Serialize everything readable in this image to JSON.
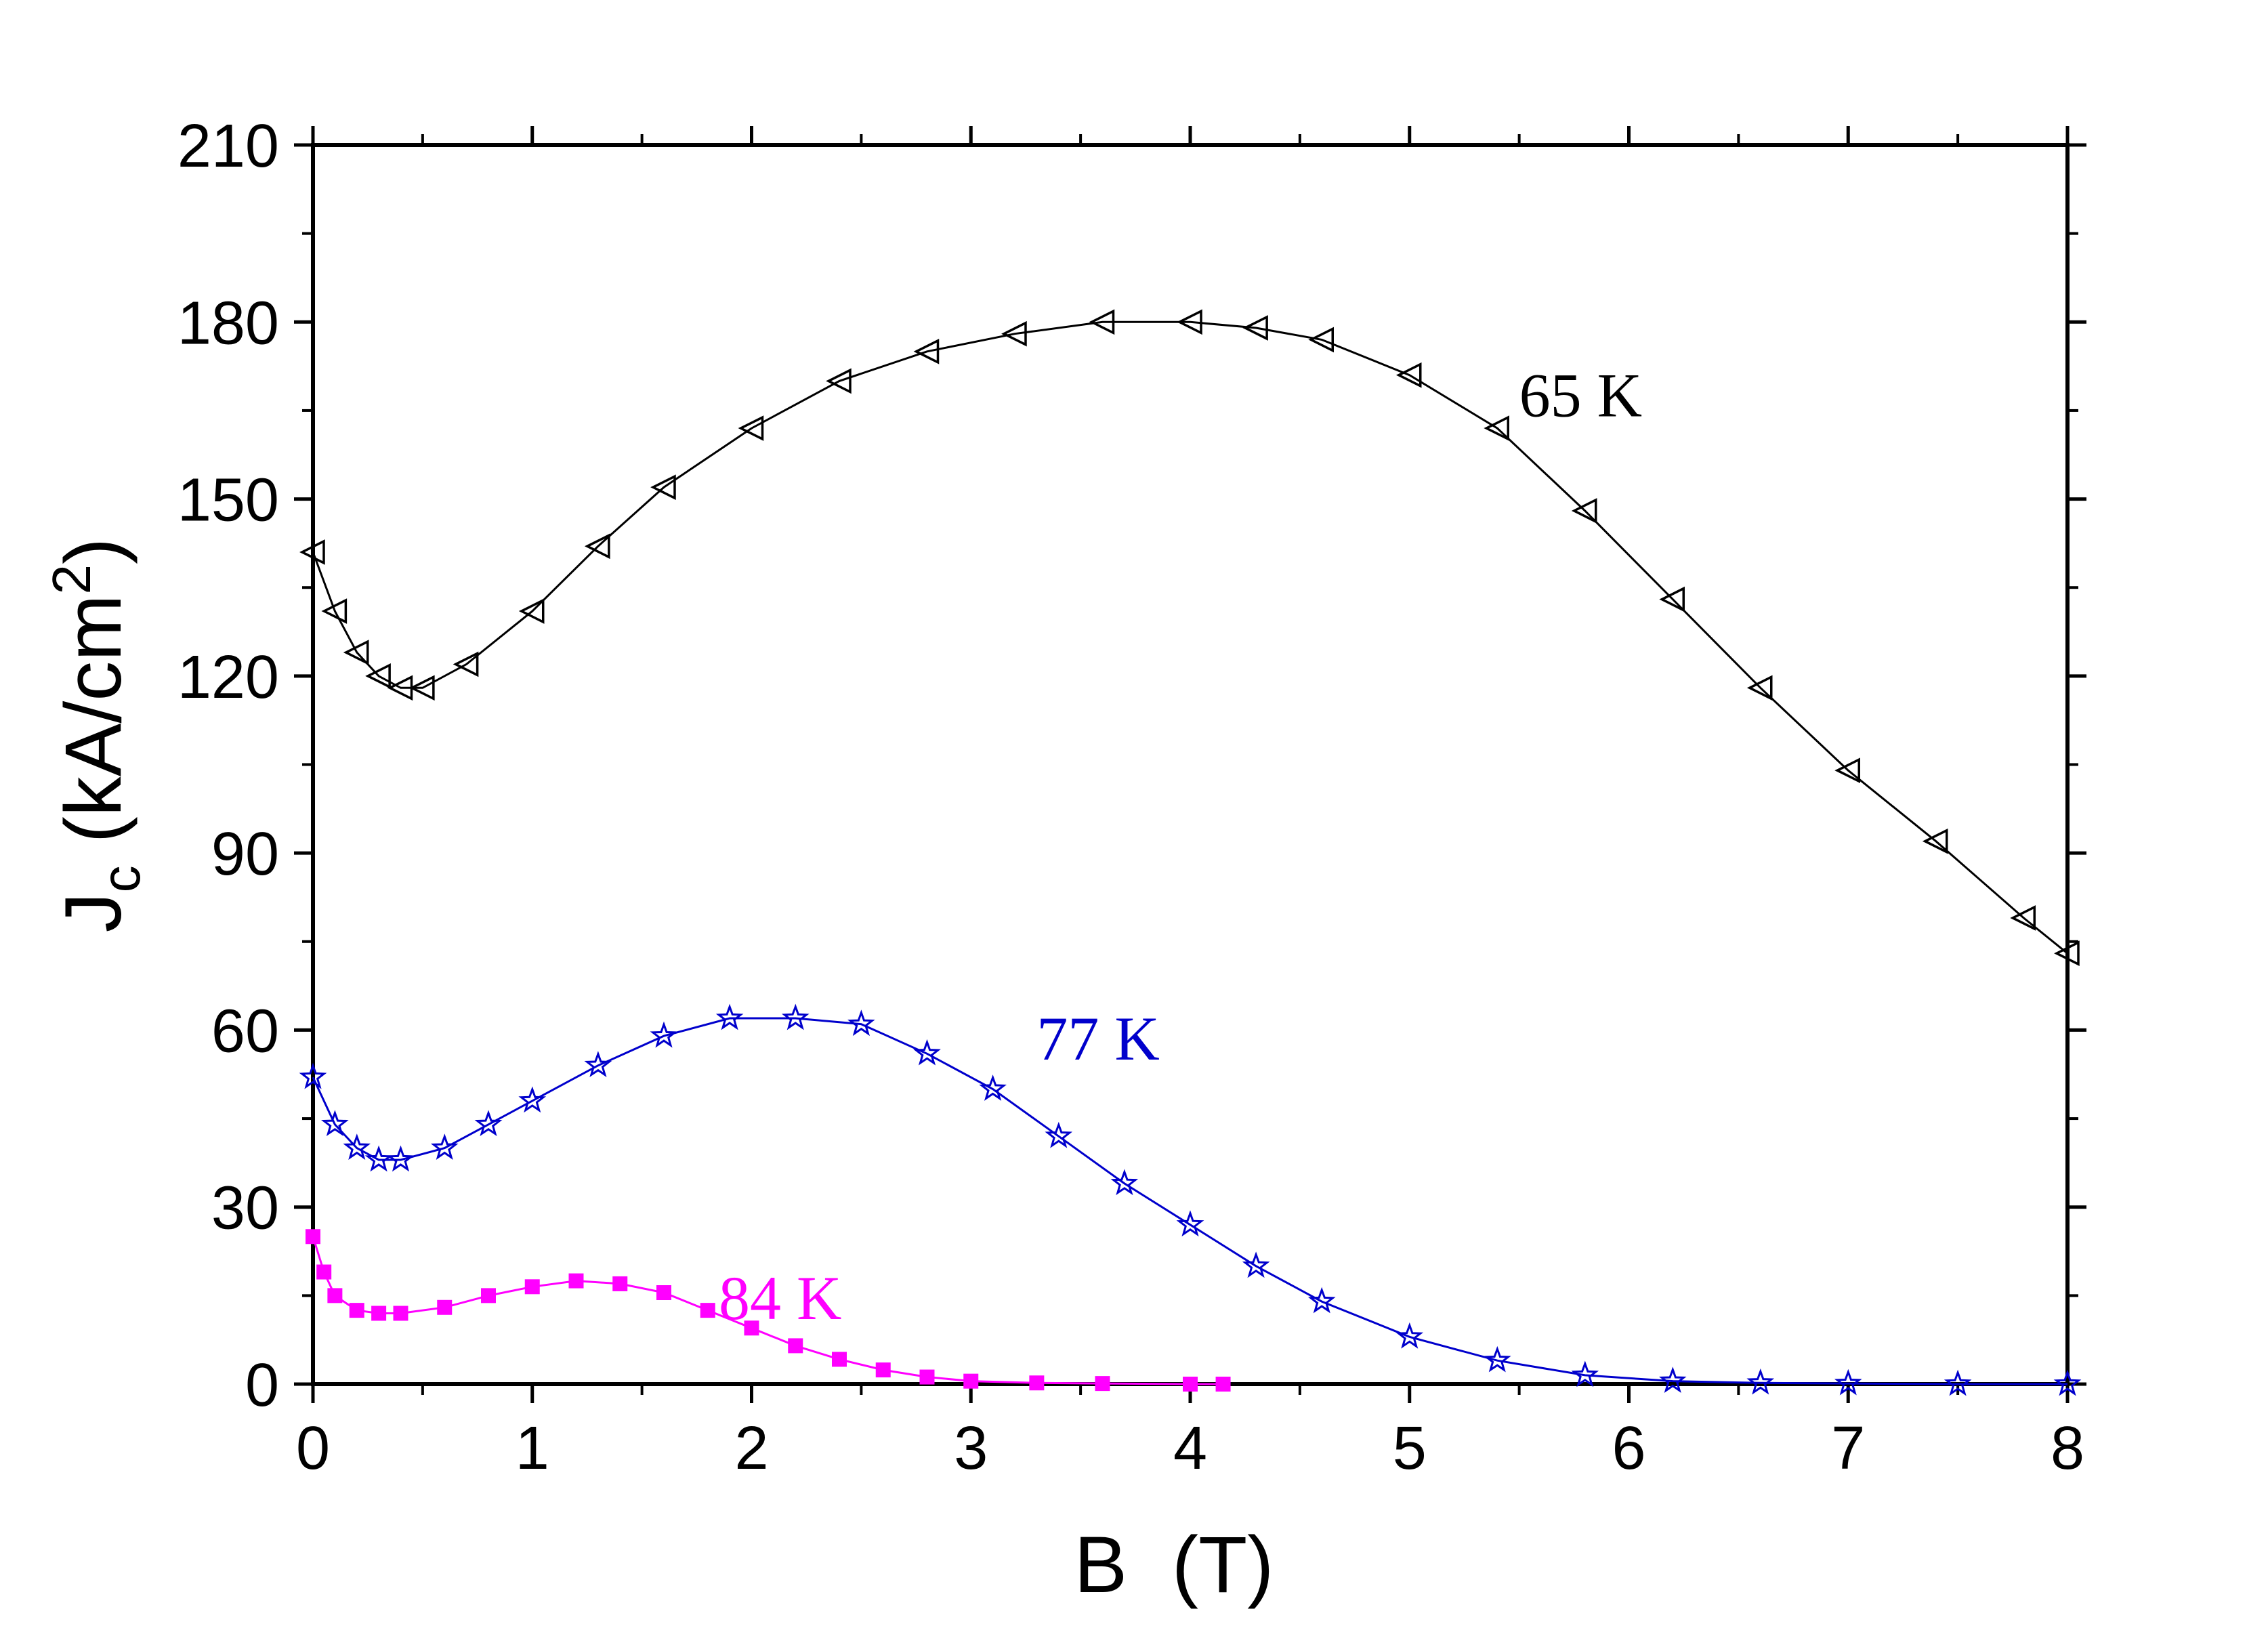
{
  "chart_data": {
    "type": "scatter",
    "xlabel": "B  (T)",
    "ylabel": {
      "main": "J",
      "sub": "c",
      "units_prefix": " (kA/cm",
      "sup": "2",
      "units_suffix": ")"
    },
    "xlim": [
      0,
      8
    ],
    "ylim": [
      0,
      210
    ],
    "x_ticks": [
      0,
      1,
      2,
      3,
      4,
      5,
      6,
      7,
      8
    ],
    "y_ticks": [
      0,
      30,
      60,
      90,
      120,
      150,
      180,
      210
    ],
    "grid": false,
    "legend": "none",
    "series": [
      {
        "name": "65 K",
        "color": "#000000",
        "marker": "triangle-left",
        "x": [
          0.0,
          0.1,
          0.2,
          0.3,
          0.4,
          0.5,
          0.7,
          1.0,
          1.3,
          1.6,
          2.0,
          2.4,
          2.8,
          3.2,
          3.6,
          4.0,
          4.3,
          4.6,
          5.0,
          5.4,
          5.8,
          6.2,
          6.6,
          7.0,
          7.4,
          7.8,
          8.0
        ],
        "y": [
          141,
          131,
          124,
          120,
          118,
          118,
          122,
          131,
          142,
          152,
          162,
          170,
          175,
          178,
          180,
          180,
          179,
          177,
          171,
          162,
          148,
          133,
          118,
          104,
          92,
          79,
          73
        ]
      },
      {
        "name": "77 K",
        "color": "#0000cc",
        "marker": "star",
        "x": [
          0.0,
          0.1,
          0.2,
          0.3,
          0.4,
          0.6,
          0.8,
          1.0,
          1.3,
          1.6,
          1.9,
          2.2,
          2.5,
          2.8,
          3.1,
          3.4,
          3.7,
          4.0,
          4.3,
          4.6,
          5.0,
          5.4,
          5.8,
          6.2,
          6.6,
          7.0,
          7.5,
          8.0
        ],
        "y": [
          52,
          44,
          40,
          38,
          38,
          40,
          44,
          48,
          54,
          59,
          62,
          62,
          61,
          56,
          50,
          42,
          34,
          27,
          20,
          14,
          8,
          4,
          1.5,
          0.5,
          0.2,
          0.1,
          0,
          0
        ]
      },
      {
        "name": "84 K",
        "color": "#ff00ff",
        "marker": "square",
        "x": [
          0.0,
          0.05,
          0.1,
          0.2,
          0.3,
          0.4,
          0.6,
          0.8,
          1.0,
          1.2,
          1.4,
          1.6,
          1.8,
          2.0,
          2.2,
          2.4,
          2.6,
          2.8,
          3.0,
          3.3,
          3.6,
          4.0,
          4.15
        ],
        "y": [
          25,
          19,
          15,
          12.5,
          12,
          12,
          13,
          15,
          16.5,
          17.5,
          17,
          15.5,
          12.5,
          9.5,
          6.5,
          4.2,
          2.4,
          1.2,
          0.5,
          0.2,
          0.1,
          0,
          0
        ]
      }
    ],
    "annotations": [
      {
        "text": "65 K",
        "color": "#000000",
        "x": 5.5,
        "y": 164
      },
      {
        "text": "77 K",
        "color": "#0000cc",
        "x": 3.3,
        "y": 55
      },
      {
        "text": "84 K",
        "color": "#ff00ff",
        "x": 1.85,
        "y": 11
      }
    ]
  }
}
